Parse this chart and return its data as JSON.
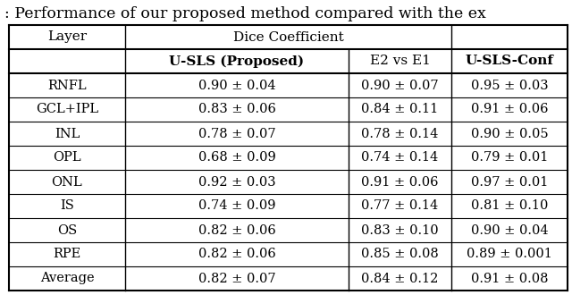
{
  "title": ": Performance of our proposed method compared with the ex",
  "title_fontsize": 12.5,
  "group_header": "Dice Coefficient",
  "col0_header": "Layer",
  "subheaders": [
    "U-SLS (Proposed)",
    "E2 vs E1",
    "U-SLS-Conf"
  ],
  "rows": [
    [
      "RNFL",
      "0.90 ± 0.04",
      "0.90 ± 0.07",
      "0.95 ± 0.03"
    ],
    [
      "GCL+IPL",
      "0.83 ± 0.06",
      "0.84 ± 0.11",
      "0.91 ± 0.06"
    ],
    [
      "INL",
      "0.78 ± 0.07",
      "0.78 ± 0.14",
      "0.90 ± 0.05"
    ],
    [
      "OPL",
      "0.68 ± 0.09",
      "0.74 ± 0.14",
      "0.79 ± 0.01"
    ],
    [
      "ONL",
      "0.92 ± 0.03",
      "0.91 ± 0.06",
      "0.97 ± 0.01"
    ],
    [
      "IS",
      "0.74 ± 0.09",
      "0.77 ± 0.14",
      "0.81 ± 0.10"
    ],
    [
      "OS",
      "0.82 ± 0.06",
      "0.83 ± 0.10",
      "0.90 ± 0.04"
    ],
    [
      "RPE",
      "0.82 ± 0.06",
      "0.85 ± 0.08",
      "0.89 ± 0.001"
    ],
    [
      "Average",
      "0.82 ± 0.07",
      "0.84 ± 0.12",
      "0.91 ± 0.08"
    ]
  ],
  "background_color": "#ffffff",
  "header_fontsize": 11,
  "cell_fontsize": 10.5,
  "fig_width": 6.4,
  "fig_height": 3.3,
  "dpi": 100
}
